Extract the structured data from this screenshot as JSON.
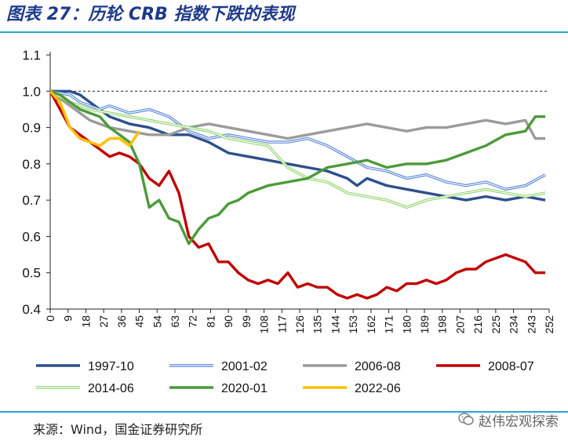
{
  "title": "图表 27：历轮 CRB 指数下跌的表现",
  "source": "来源：Wind，国金证券研究所",
  "watermark": "赵伟宏观探索",
  "colors": {
    "accent": "#2aa5d6",
    "title": "#1e3a8a"
  },
  "chart_data": {
    "type": "line",
    "title": "",
    "xlabel": "",
    "ylabel": "",
    "xlim": [
      0,
      252
    ],
    "ylim": [
      0.4,
      1.1
    ],
    "xticks": [
      0,
      9,
      18,
      27,
      36,
      45,
      54,
      63,
      72,
      81,
      90,
      99,
      108,
      117,
      126,
      135,
      144,
      153,
      162,
      171,
      180,
      189,
      198,
      207,
      216,
      225,
      234,
      243,
      252
    ],
    "xtick_labels": [
      "0",
      "9",
      "18",
      "27",
      "36",
      "45",
      "54",
      "63",
      "72",
      "81",
      "90",
      "99",
      "108",
      "117",
      "126",
      "135",
      "144",
      "153",
      "162",
      "171",
      "180",
      "189",
      "198",
      "207",
      "216",
      "225",
      "234",
      "243",
      "252"
    ],
    "yticks": [
      0.4,
      0.5,
      0.6,
      0.7,
      0.8,
      0.9,
      1.0,
      1.1
    ],
    "ytick_labels": [
      "0.4",
      "0.5",
      "0.6",
      "0.7",
      "0.8",
      "0.9",
      "1.0",
      "1.1"
    ],
    "reference_line": 1.0,
    "grid": false,
    "legend_position": "bottom",
    "series": [
      {
        "name": "1997-10",
        "color": "#2e4f8c",
        "style": "solid",
        "x": [
          0,
          5,
          10,
          15,
          20,
          25,
          30,
          40,
          50,
          55,
          60,
          70,
          80,
          90,
          100,
          110,
          120,
          130,
          140,
          150,
          155,
          160,
          170,
          180,
          190,
          200,
          210,
          220,
          230,
          240,
          250
        ],
        "y": [
          1.0,
          1.0,
          1.0,
          0.99,
          0.97,
          0.95,
          0.93,
          0.91,
          0.9,
          0.89,
          0.88,
          0.88,
          0.86,
          0.83,
          0.82,
          0.81,
          0.8,
          0.79,
          0.78,
          0.76,
          0.74,
          0.76,
          0.74,
          0.73,
          0.72,
          0.71,
          0.7,
          0.71,
          0.7,
          0.71,
          0.7
        ]
      },
      {
        "name": "2001-02",
        "color": "#4f7fd6",
        "style": "double",
        "x": [
          0,
          10,
          15,
          20,
          25,
          30,
          40,
          50,
          60,
          70,
          80,
          90,
          100,
          110,
          120,
          130,
          140,
          150,
          160,
          170,
          180,
          190,
          200,
          210,
          220,
          230,
          240,
          250
        ],
        "y": [
          1.0,
          0.99,
          0.97,
          0.96,
          0.95,
          0.96,
          0.94,
          0.95,
          0.93,
          0.89,
          0.87,
          0.88,
          0.87,
          0.86,
          0.86,
          0.87,
          0.85,
          0.82,
          0.79,
          0.78,
          0.76,
          0.77,
          0.75,
          0.74,
          0.75,
          0.73,
          0.74,
          0.77
        ]
      },
      {
        "name": "2006-08",
        "color": "#9b9b9b",
        "style": "solid",
        "x": [
          0,
          10,
          20,
          30,
          40,
          50,
          60,
          70,
          80,
          90,
          100,
          110,
          120,
          130,
          140,
          150,
          160,
          170,
          180,
          190,
          200,
          210,
          220,
          230,
          240,
          245,
          250
        ],
        "y": [
          1.0,
          0.96,
          0.92,
          0.9,
          0.89,
          0.88,
          0.88,
          0.9,
          0.91,
          0.9,
          0.89,
          0.88,
          0.87,
          0.88,
          0.89,
          0.9,
          0.91,
          0.9,
          0.89,
          0.9,
          0.9,
          0.91,
          0.92,
          0.91,
          0.92,
          0.87,
          0.87
        ]
      },
      {
        "name": "2008-07",
        "color": "#c00000",
        "style": "solid",
        "x": [
          0,
          5,
          10,
          15,
          20,
          25,
          30,
          35,
          40,
          45,
          50,
          55,
          60,
          65,
          70,
          75,
          80,
          85,
          90,
          95,
          100,
          105,
          110,
          115,
          120,
          125,
          130,
          135,
          140,
          145,
          150,
          155,
          160,
          165,
          170,
          175,
          180,
          185,
          190,
          195,
          200,
          205,
          210,
          215,
          220,
          225,
          230,
          235,
          240,
          245,
          250
        ],
        "y": [
          1.0,
          0.95,
          0.9,
          0.88,
          0.86,
          0.84,
          0.82,
          0.83,
          0.82,
          0.8,
          0.76,
          0.74,
          0.78,
          0.72,
          0.6,
          0.57,
          0.58,
          0.53,
          0.53,
          0.5,
          0.48,
          0.47,
          0.48,
          0.47,
          0.5,
          0.46,
          0.47,
          0.46,
          0.46,
          0.44,
          0.43,
          0.44,
          0.43,
          0.44,
          0.46,
          0.45,
          0.47,
          0.47,
          0.48,
          0.47,
          0.48,
          0.5,
          0.51,
          0.51,
          0.53,
          0.54,
          0.55,
          0.54,
          0.53,
          0.5,
          0.5
        ]
      },
      {
        "name": "2014-06",
        "color": "#8fd46a",
        "style": "double",
        "x": [
          0,
          10,
          20,
          30,
          40,
          50,
          60,
          70,
          80,
          90,
          100,
          110,
          120,
          130,
          140,
          150,
          160,
          170,
          180,
          190,
          200,
          210,
          220,
          230,
          240,
          250
        ],
        "y": [
          1.0,
          0.97,
          0.95,
          0.94,
          0.93,
          0.92,
          0.91,
          0.9,
          0.89,
          0.87,
          0.86,
          0.85,
          0.79,
          0.76,
          0.75,
          0.72,
          0.71,
          0.7,
          0.68,
          0.7,
          0.71,
          0.72,
          0.73,
          0.72,
          0.71,
          0.72
        ]
      },
      {
        "name": "2020-01",
        "color": "#4c9a3a",
        "style": "solid",
        "x": [
          0,
          5,
          10,
          15,
          20,
          25,
          30,
          35,
          40,
          45,
          50,
          55,
          60,
          65,
          70,
          75,
          80,
          85,
          90,
          95,
          100,
          110,
          120,
          130,
          140,
          150,
          160,
          170,
          180,
          190,
          200,
          210,
          220,
          230,
          240,
          245,
          250
        ],
        "y": [
          1.0,
          0.99,
          0.97,
          0.95,
          0.94,
          0.93,
          0.9,
          0.88,
          0.86,
          0.8,
          0.68,
          0.7,
          0.65,
          0.64,
          0.58,
          0.62,
          0.65,
          0.66,
          0.69,
          0.7,
          0.72,
          0.74,
          0.75,
          0.76,
          0.79,
          0.8,
          0.81,
          0.79,
          0.8,
          0.8,
          0.81,
          0.83,
          0.85,
          0.88,
          0.89,
          0.93,
          0.93
        ]
      },
      {
        "name": "2022-06",
        "color": "#ffc000",
        "style": "solid",
        "x": [
          0,
          5,
          10,
          15,
          20,
          25,
          30,
          35,
          40,
          45
        ],
        "y": [
          1.0,
          0.97,
          0.9,
          0.87,
          0.86,
          0.85,
          0.87,
          0.87,
          0.85,
          0.89
        ]
      }
    ]
  }
}
